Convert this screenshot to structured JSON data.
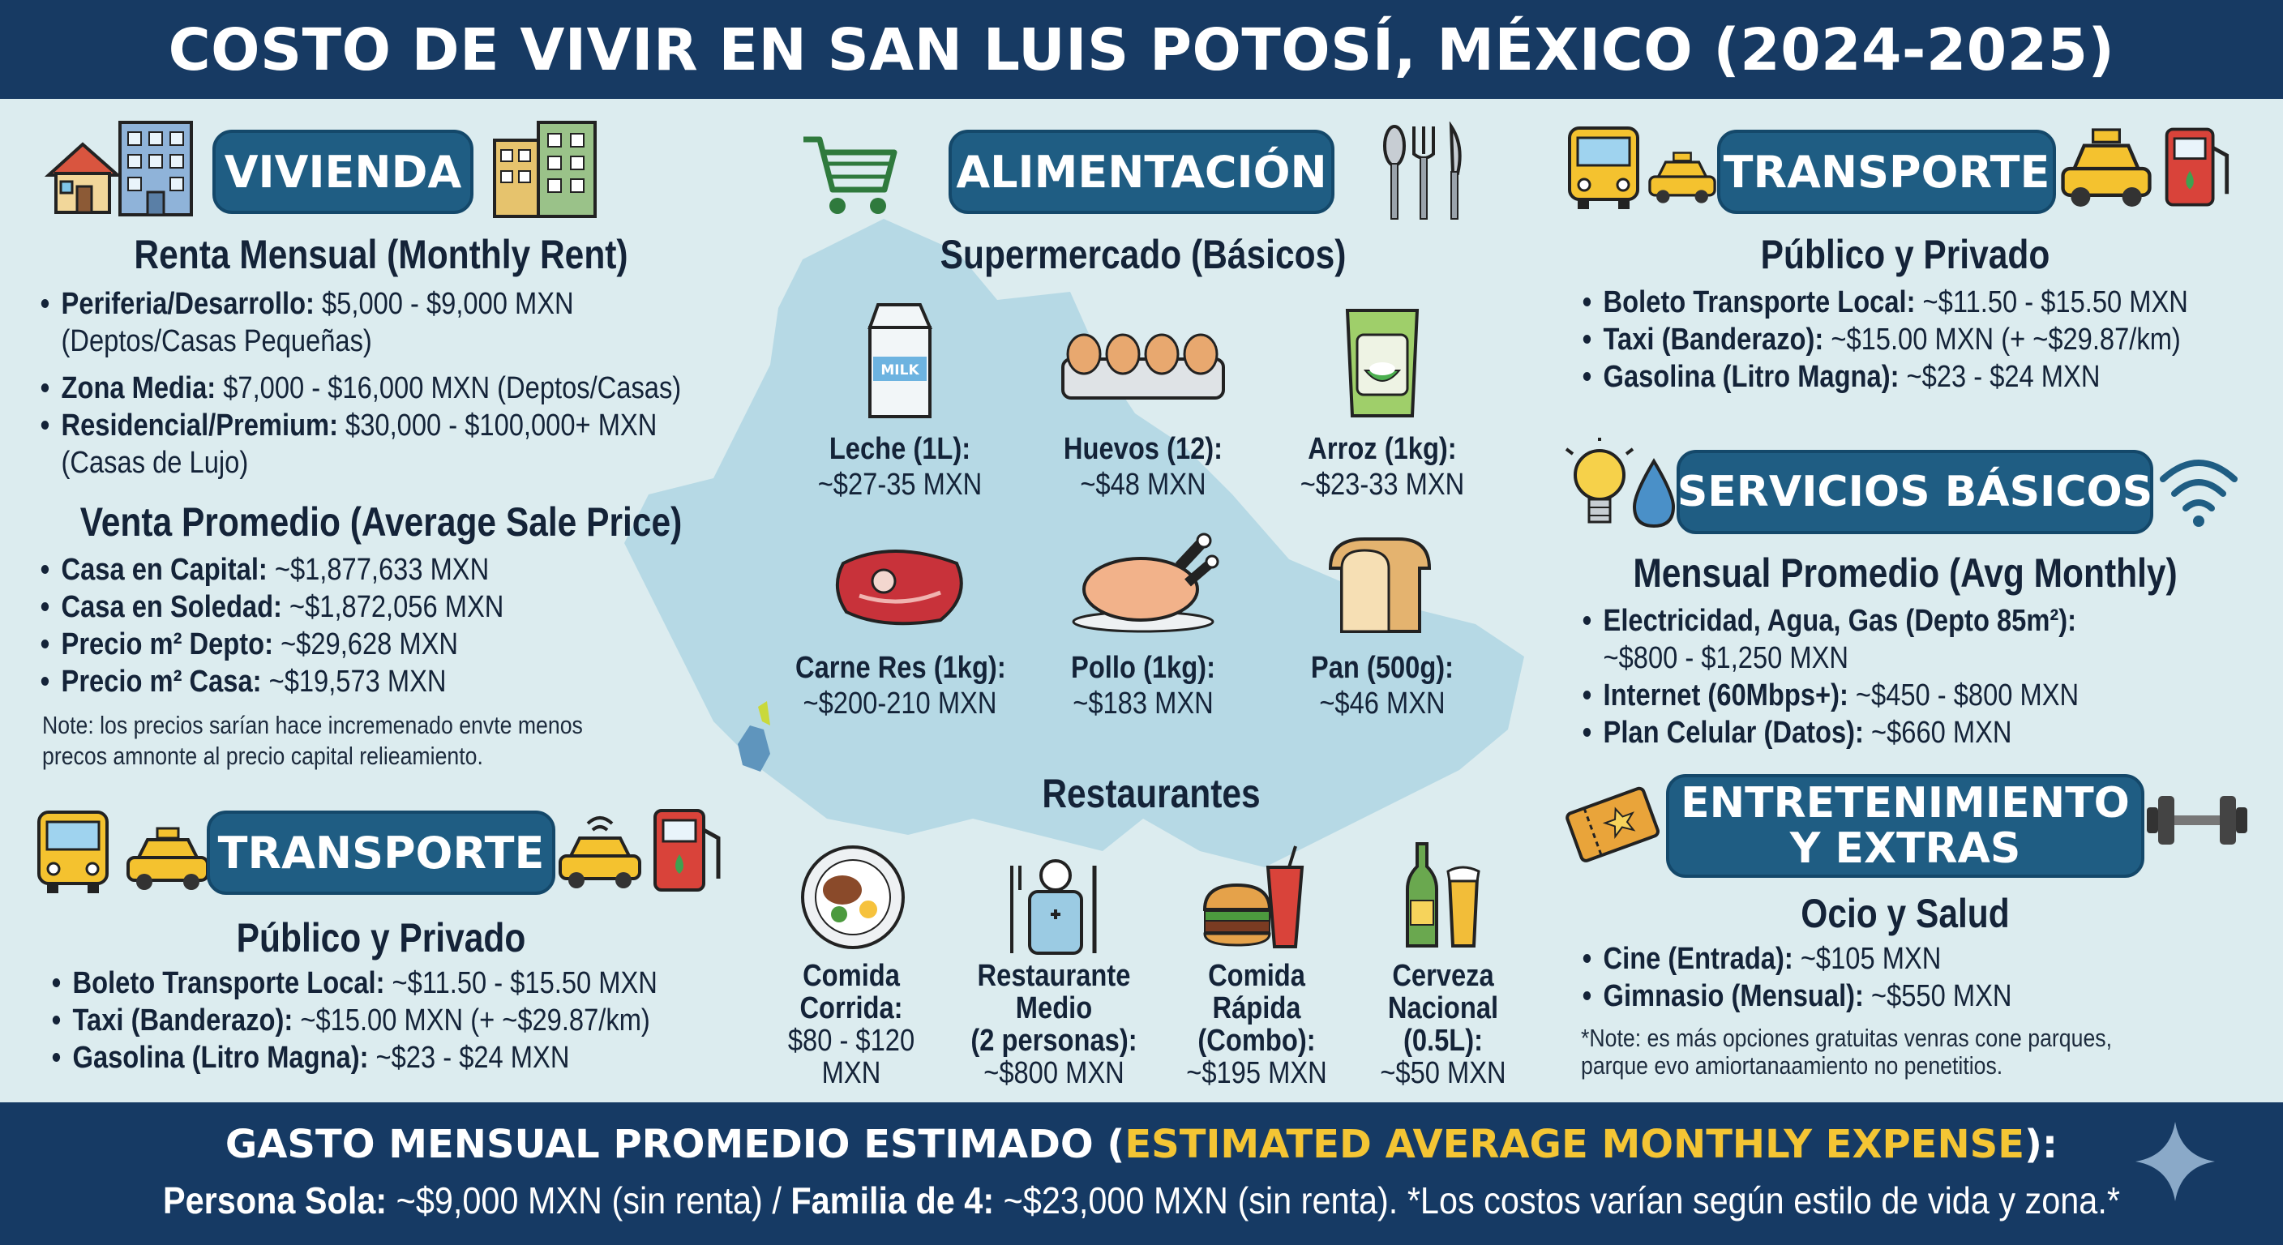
{
  "title": "COSTO DE VIVIR EN SAN LUIS POTOSÍ, MÉXICO (2024-2025)",
  "vivienda": {
    "header": "VIVIENDA",
    "rent_title": "Renta Mensual (Monthly Rent)",
    "rent_items": [
      {
        "label": "Periferia/Desarrollo:",
        "value": " $5,000 - $9,000 MXN",
        "extra": "(Deptos/Casas Pequeñas)"
      },
      {
        "label": "Zona Media:",
        "value": " $7,000 - $16,000 MXN (Deptos/Casas)"
      },
      {
        "label": "Residencial/Premium:",
        "value": " $30,000 - $100,000+ MXN",
        "extra": "(Casas de Lujo)"
      }
    ],
    "sale_title": "Venta Promedio (Average Sale Price)",
    "sale_items": [
      {
        "label": "Casa en Capital:",
        "value": " ~$1,877,633 MXN"
      },
      {
        "label": "Casa en Soledad:",
        "value": " ~$1,872,056 MXN"
      },
      {
        "label": "Precio m² Depto:",
        "value": " ~$29,628 MXN"
      },
      {
        "label": "Precio m² Casa:",
        "value": " ~$19,573 MXN"
      }
    ],
    "note_line1": "Note: los precios sarían hace incremenado envte menos",
    "note_line2": "precos amnonte al precio capital relieamiento."
  },
  "transporte_left": {
    "header": "TRANSPORTE",
    "subtitle": "Público y Privado",
    "items": [
      {
        "label": "Boleto Transporte Local:",
        "value": " ~$11.50 - $15.50 MXN"
      },
      {
        "label": "Taxi (Banderazo):",
        "value": " ~$15.00 MXN (+ ~$29.87/km)"
      },
      {
        "label": "Gasolina (Litro Magna):",
        "value": " ~$23 - $24 MXN"
      }
    ]
  },
  "alimentacion": {
    "header": "ALIMENTACIÓN",
    "super_title": "Supermercado (Básicos)",
    "milk_text": "MILK",
    "super_items": [
      {
        "label": "Leche (1L):",
        "price": "~$27-35 MXN"
      },
      {
        "label": "Huevos (12):",
        "price": "~$48 MXN"
      },
      {
        "label": "Arroz (1kg):",
        "price": "~$23-33 MXN"
      },
      {
        "label": "Carne Res (1kg):",
        "price": "~$200-210 MXN"
      },
      {
        "label": "Pollo (1kg):",
        "price": "~$183 MXN"
      },
      {
        "label": "Pan (500g):",
        "price": "~$46 MXN"
      }
    ],
    "rest_title": "Restaurantes",
    "rest_items": [
      {
        "l1": "Comida",
        "l2": "Corrida:",
        "l3": "$80 - $120",
        "l4": "MXN"
      },
      {
        "l1": "Restaurante",
        "l2": "Medio",
        "l3": "(2 personas):",
        "l4": "~$800 MXN"
      },
      {
        "l1": "Comida",
        "l2": "Rápida",
        "l3": "(Combo):",
        "l4": "~$195 MXN"
      },
      {
        "l1": "Cerveza",
        "l2": "Nacional",
        "l3": "(0.5L):",
        "l4": "~$50 MXN"
      }
    ]
  },
  "transporte_right": {
    "header": "TRANSPORTE",
    "subtitle": "Público y Privado",
    "items": [
      {
        "label": "Boleto Transporte Local:",
        "value": " ~$11.50 - $15.50 MXN"
      },
      {
        "label": "Taxi (Banderazo):",
        "value": " ~$15.00 MXN (+ ~$29.87/km)"
      },
      {
        "label": "Gasolina (Litro Magna):",
        "value": " ~$23 - $24 MXN"
      }
    ]
  },
  "servicios": {
    "header": "SERVICIOS BÁSICOS",
    "subtitle": "Mensual Promedio (Avg Monthly)",
    "items": [
      {
        "label": "Electricidad, Agua, Gas (Depto 85m²):",
        "value": "",
        "extra": "~$800 - $1,250 MXN"
      },
      {
        "label": "Internet (60Mbps+):",
        "value": " ~$450 - $800 MXN"
      },
      {
        "label": "Plan Celular (Datos):",
        "value": " ~$660 MXN"
      }
    ]
  },
  "entretenimiento": {
    "header_l1": "ENTRETENIMIENTO",
    "header_l2": "Y EXTRAS",
    "subtitle": "Ocio y Salud",
    "items": [
      {
        "label": "Cine (Entrada):",
        "value": " ~$105 MXN"
      },
      {
        "label": "Gimnasio (Mensual):",
        "value": " ~$550 MXN"
      }
    ],
    "note_line1": "*Note: es más opciones gratuitas venras cone parques,",
    "note_line2": "parque evo amiortanaamiento no penetitios."
  },
  "footer": {
    "line1_a": "GASTO MENSUAL PROMEDIO ESTIMADO (",
    "line1_hl": "ESTIMATED AVERAGE MONTHLY EXPENSE",
    "line1_b": "):",
    "single_label": "Persona Sola:",
    "single_value": " ~$9,000 MXN (sin renta) / ",
    "family_label": "Familia de 4:",
    "family_value": " ~$23,000 MXN (sin renta). *Los costos varían según estilo de vida y zona.*"
  },
  "colors": {
    "navy": "#173a63",
    "pill": "#1f5d83",
    "highlight": "#f4c534",
    "background": "#dcecef",
    "map": "#a9d3e2"
  }
}
